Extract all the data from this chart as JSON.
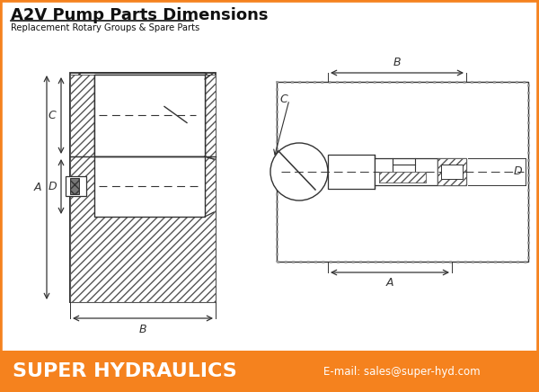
{
  "title": "A2V Pump Parts Dimensions",
  "subtitle": "Replacement Rotary Groups & Spare Parts",
  "footer_company": "SUPER HYDRAULICS",
  "footer_email": "E-mail: sales@super-hyd.com",
  "footer_bg": "#F5821E",
  "border_color": "#F5821E",
  "bg_color": "#FFFFFF",
  "title_color": "#111111",
  "footer_text_color": "#FFFFFF",
  "lc": "#333333",
  "hc": "#555555"
}
